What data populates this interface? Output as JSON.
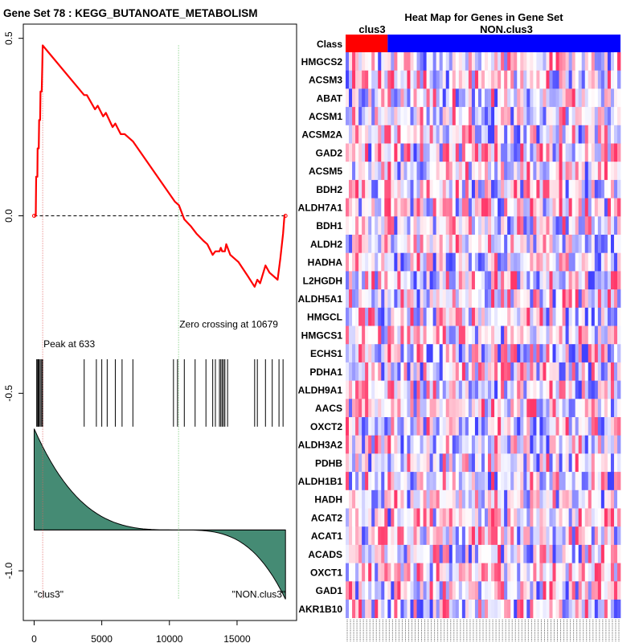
{
  "chart_data": [
    {
      "type": "line",
      "title": "Gene Set  78 : KEGG_BUTANOATE_METABOLISM",
      "xlabel": "",
      "ylabel": "",
      "xlim": [
        -800,
        19400
      ],
      "ylim": [
        -1.14,
        0.54
      ],
      "x_ticks": [
        0,
        5000,
        10000,
        15000
      ],
      "y_ticks": [
        0.5,
        0.0,
        -0.5,
        -1.0
      ],
      "y_tick_labels": [
        "0.5",
        "0.0",
        "-0.5",
        "-1.0"
      ],
      "grid": false,
      "zero_line": 0.0,
      "running_es": {
        "name": "Running enrichment score",
        "x": [
          0,
          120,
          150,
          240,
          260,
          340,
          370,
          440,
          470,
          560,
          600,
          633,
          3700,
          3900,
          4500,
          4700,
          5100,
          5300,
          5800,
          6000,
          6400,
          6700,
          7300,
          10400,
          10700,
          11100,
          11600,
          12000,
          12500,
          12800,
          13200,
          13400,
          13700,
          13800,
          13900,
          14100,
          14200,
          14500,
          15100,
          15800,
          16300,
          16500,
          16700,
          17100,
          17400,
          18000,
          18200,
          18400,
          18500,
          18580
        ],
        "y": [
          0.0,
          0.0,
          0.11,
          0.11,
          0.19,
          0.19,
          0.27,
          0.27,
          0.35,
          0.35,
          0.42,
          0.48,
          0.34,
          0.34,
          0.3,
          0.31,
          0.28,
          0.29,
          0.25,
          0.26,
          0.23,
          0.23,
          0.21,
          0.04,
          0.03,
          -0.01,
          -0.03,
          -0.05,
          -0.07,
          -0.08,
          -0.11,
          -0.1,
          -0.1,
          -0.09,
          -0.1,
          -0.1,
          -0.08,
          -0.11,
          -0.13,
          -0.17,
          -0.2,
          -0.18,
          -0.19,
          -0.14,
          -0.16,
          -0.18,
          -0.12,
          -0.05,
          0.0,
          0.0
        ],
        "color": "#ff0000"
      },
      "hits": [
        190,
        260,
        300,
        350,
        440,
        520,
        600,
        633,
        3700,
        4600,
        5000,
        5400,
        6000,
        6500,
        7300,
        10300,
        10600,
        11100,
        11900,
        12700,
        13200,
        13400,
        13700,
        13800,
        13900,
        14000,
        14100,
        14300,
        16300,
        16500,
        17100,
        17600,
        18100,
        18400
      ],
      "ranked_metric": {
        "start": -0.6,
        "baseline": -0.885,
        "end": -1.08,
        "zero_cross": 10679,
        "fill_color": "#458b74"
      },
      "peak": {
        "x": 633,
        "label": "Peak at 633",
        "color": "#e06060"
      },
      "zero_crossing": {
        "x": 10679,
        "label": "Zero crossing at 10679",
        "color": "#7ccd7c"
      },
      "class_labels": {
        "left": "\"clus3\"",
        "right": "\"NON.clus3\""
      }
    },
    {
      "type": "heatmap",
      "title": "Heat Map for Genes in Gene Set",
      "class_row_label": "Class",
      "groups": [
        {
          "name": "clus3",
          "n_samples": 13,
          "color": "#ff0000"
        },
        {
          "name": "NON.clus3",
          "n_samples": 72,
          "color": "#0000ff"
        }
      ],
      "genes": [
        "HMGCS2",
        "ACSM3",
        "ABAT",
        "ACSM1",
        "ACSM2A",
        "GAD2",
        "ACSM5",
        "BDH2",
        "ALDH7A1",
        "BDH1",
        "ALDH2",
        "HADHA",
        "L2HGDH",
        "ALDH5A1",
        "HMGCL",
        "HMGCS1",
        "ECHS1",
        "PDHA1",
        "ALDH9A1",
        "AACS",
        "OXCT2",
        "ALDH3A2",
        "PDHB",
        "ALDH1B1",
        "HADH",
        "ACAT2",
        "ACAT1",
        "ACADS",
        "OXCT1",
        "GAD1",
        "AKR1B10"
      ],
      "color_scale": [
        "#0000ff",
        "#ffffff",
        "#ff0000"
      ],
      "values_note": "row-normalized expression, individual cell values not legible"
    }
  ]
}
